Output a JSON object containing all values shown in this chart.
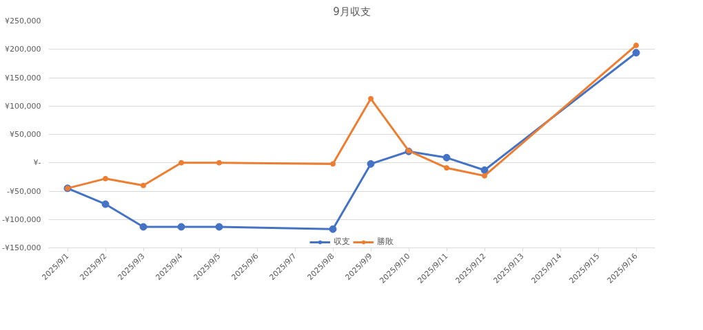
{
  "chart_data": {
    "type": "line",
    "title": "9月収支",
    "x": [
      "2025-09-01",
      "2025-09-02",
      "2025-09-03",
      "2025-09-04",
      "2025-09-05",
      "2025-09-08",
      "2025-09-09",
      "2025-09-10",
      "2025-09-11",
      "2025-09-12",
      "2025-09-16"
    ],
    "series": [
      {
        "name": "収支",
        "color": "#4472c4",
        "values": [
          -45000,
          -73000,
          -113000,
          -113000,
          -113000,
          -117000,
          -2000,
          20000,
          9000,
          -13000,
          194000
        ]
      },
      {
        "name": "勝敗",
        "color": "#ed7d31",
        "values": [
          -45000,
          -28000,
          -40000,
          0,
          0,
          -2000,
          113000,
          21000,
          -9000,
          -23000,
          207000
        ]
      }
    ],
    "xlim": [
      "2025-08-31T12:00",
      "2025-09-16T12:00"
    ],
    "xticks": [
      {
        "value": "2025-09-01",
        "label": "2025/9/1"
      },
      {
        "value": "2025-09-02",
        "label": "2025/9/2"
      },
      {
        "value": "2025-09-03",
        "label": "2025/9/3"
      },
      {
        "value": "2025-09-04",
        "label": "2025/9/4"
      },
      {
        "value": "2025-09-05",
        "label": "2025/9/5"
      },
      {
        "value": "2025-09-06",
        "label": "2025/9/6"
      },
      {
        "value": "2025-09-07",
        "label": "2025/9/7"
      },
      {
        "value": "2025-09-08",
        "label": "2025/9/8"
      },
      {
        "value": "2025-09-09",
        "label": "2025/9/9"
      },
      {
        "value": "2025-09-10",
        "label": "2025/9/10"
      },
      {
        "value": "2025-09-11",
        "label": "2025/9/11"
      },
      {
        "value": "2025-09-12",
        "label": "2025/9/12"
      },
      {
        "value": "2025-09-13",
        "label": "2025/9/13"
      },
      {
        "value": "2025-09-14",
        "label": "2025/9/14"
      },
      {
        "value": "2025-09-15",
        "label": "2025/9/15"
      },
      {
        "value": "2025-09-16",
        "label": "2025/9/16"
      }
    ],
    "ylim": [
      -150000,
      250000
    ],
    "yticks": [
      {
        "value": -150000,
        "label": "-¥150,000"
      },
      {
        "value": -100000,
        "label": "-¥100,000"
      },
      {
        "value": -50000,
        "label": "-¥50,000"
      },
      {
        "value": 0,
        "label": "¥-"
      },
      {
        "value": 50000,
        "label": "¥50,000"
      },
      {
        "value": 100000,
        "label": "¥100,000"
      },
      {
        "value": 150000,
        "label": "¥150,000"
      },
      {
        "value": 200000,
        "label": "¥200,000"
      },
      {
        "value": 250000,
        "label": "¥250,000"
      }
    ],
    "grid": "y",
    "legend": "bottom",
    "marker": "circle",
    "line_style": "solid"
  }
}
